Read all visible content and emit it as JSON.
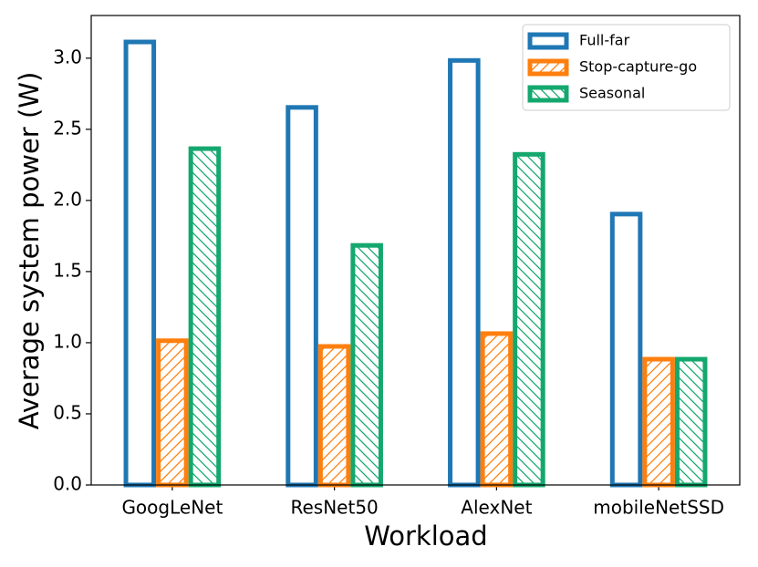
{
  "chart_data": {
    "type": "bar",
    "categories": [
      "GoogLeNet",
      "ResNet50",
      "AlexNet",
      "mobileNetSSD"
    ],
    "series": [
      {
        "name": "Full-far",
        "color": "#1f77b4",
        "values": [
          3.13,
          2.67,
          3.0,
          1.92
        ]
      },
      {
        "name": "Stop-capture-go",
        "color": "#ff7f0e",
        "hatch": "/",
        "values": [
          1.03,
          0.99,
          1.08,
          0.9
        ]
      },
      {
        "name": "Seasonal",
        "color": "#14a86e",
        "hatch": "\\",
        "values": [
          2.38,
          1.7,
          2.34,
          0.9
        ]
      }
    ],
    "xlabel": "Workload",
    "ylabel": "Average system power (W)",
    "ylim": [
      0,
      3.3
    ],
    "yticks": [
      {
        "value": 0,
        "label": "0.0"
      },
      0.5,
      {
        "value": 1,
        "label": "1.0"
      },
      1.5,
      {
        "value": 2,
        "label": "2.0"
      },
      2.5,
      {
        "value": 3,
        "label": "3.0"
      }
    ],
    "legend": "upper right"
  }
}
